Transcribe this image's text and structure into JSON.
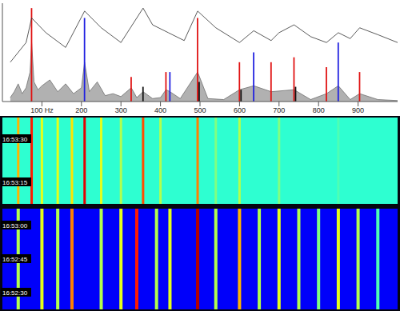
{
  "chart_data": [
    {
      "type": "area",
      "xlim": [
        0,
        1000
      ],
      "xticks": [
        {
          "value": 100,
          "label": "100 Hz"
        },
        200,
        300,
        400,
        500,
        600,
        700,
        800,
        900
      ],
      "ylim": [
        0,
        100
      ],
      "tick_labels": "x",
      "series": [
        {
          "type": "area",
          "color": "#a8a8a8",
          "x": [
            20,
            30,
            40,
            50,
            60,
            70,
            74,
            80,
            90,
            100,
            120,
            140,
            160,
            180,
            200,
            208,
            220,
            240,
            260,
            280,
            300,
            326,
            340,
            356,
            380,
            400,
            414,
            424,
            450,
            494,
            520,
            560,
            600,
            636,
            680,
            738,
            780,
            820,
            850,
            880,
            904,
            950,
            1000
          ],
          "values": [
            4,
            10,
            18,
            8,
            14,
            30,
            60,
            20,
            12,
            16,
            22,
            10,
            18,
            8,
            14,
            40,
            10,
            20,
            6,
            8,
            5,
            14,
            4,
            10,
            3,
            4,
            12,
            10,
            3,
            30,
            3,
            2,
            12,
            16,
            10,
            12,
            2,
            8,
            16,
            2,
            8,
            2,
            1
          ]
        },
        {
          "type": "bar",
          "color": "#e01010",
          "x": [
            74,
            326,
            414,
            494,
            600,
            680,
            738,
            820,
            904
          ],
          "values": [
            95,
            25,
            30,
            85,
            40,
            40,
            45,
            35,
            30
          ]
        },
        {
          "type": "bar",
          "color": "#2020e0",
          "x": [
            208,
            424,
            636,
            850
          ],
          "values": [
            85,
            30,
            50,
            60
          ]
        },
        {
          "type": "bar",
          "color": "#101010",
          "x": [
            356,
            498,
            604,
            742
          ],
          "values": [
            15,
            20,
            12,
            15
          ]
        },
        {
          "type": "line",
          "color": "#303030",
          "x": [
            20,
            60,
            74,
            110,
            160,
            208,
            250,
            300,
            356,
            380,
            420,
            460,
            494,
            540,
            600,
            636,
            680,
            700,
            738,
            780,
            820,
            850,
            880,
            904,
            950,
            1000
          ],
          "values": [
            40,
            60,
            85,
            70,
            55,
            92,
            75,
            60,
            95,
            78,
            70,
            62,
            92,
            75,
            60,
            72,
            62,
            70,
            78,
            66,
            60,
            70,
            64,
            75,
            68,
            60
          ]
        }
      ]
    },
    {
      "type": "heatmap",
      "rows": [
        "16:53:30",
        "16:53:15"
      ],
      "clim": [
        0,
        1
      ],
      "background": 0.42,
      "x": [
        40,
        74,
        100,
        140,
        176,
        208,
        250,
        300,
        356,
        400,
        494,
        540,
        600,
        700,
        850
      ],
      "values": [
        0.7,
        0.85,
        0.6,
        0.6,
        0.65,
        0.9,
        0.6,
        0.55,
        0.8,
        0.55,
        0.75,
        0.5,
        0.55,
        0.5,
        0.45
      ]
    },
    {
      "type": "heatmap",
      "rows": [
        "16:53:00",
        "16:52:45",
        "16:52:30"
      ],
      "clim": [
        0,
        1
      ],
      "background": 0.12,
      "x": [
        40,
        100,
        140,
        176,
        250,
        300,
        340,
        390,
        424,
        494,
        540,
        600,
        650,
        700,
        750,
        800,
        850,
        900,
        950
      ],
      "values": [
        0.55,
        0.6,
        0.55,
        0.75,
        0.55,
        0.6,
        0.85,
        0.55,
        0.6,
        0.95,
        0.55,
        0.7,
        0.55,
        0.6,
        0.55,
        0.5,
        0.6,
        0.55,
        0.45
      ]
    }
  ]
}
